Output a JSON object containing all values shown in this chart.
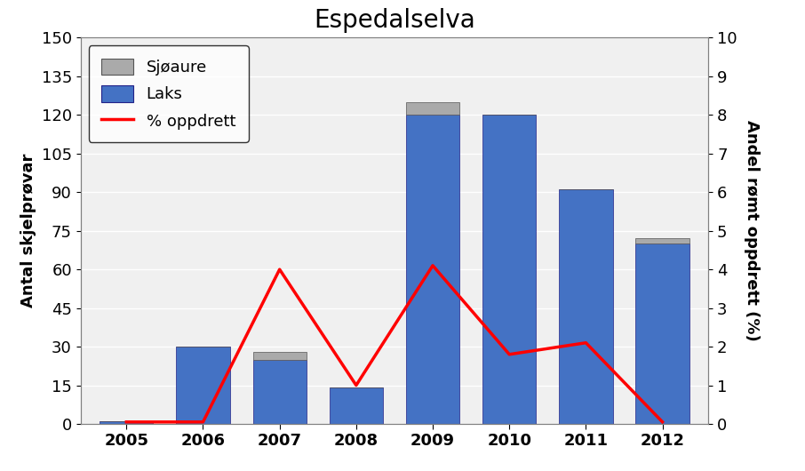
{
  "years": [
    2005,
    2006,
    2007,
    2008,
    2009,
    2010,
    2011,
    2012
  ],
  "laks": [
    1,
    30,
    25,
    14,
    120,
    120,
    91,
    70
  ],
  "sjoaure": [
    0,
    0,
    3,
    0,
    5,
    0,
    0,
    2
  ],
  "pct_oppdrett": [
    0.05,
    0.05,
    4.0,
    1.0,
    4.1,
    1.8,
    2.1,
    0.05
  ],
  "bar_color_laks": "#4472C4",
  "bar_color_sjoaure": "#AAAAAA",
  "line_color": "#FF0000",
  "title": "Espedalselva",
  "ylabel_left": "Antal skjelprøvar",
  "ylabel_right": "Andel rømt oppdrett (%)",
  "ylim_left": [
    0,
    150
  ],
  "ylim_right": [
    0,
    10
  ],
  "yticks_left": [
    0,
    15,
    30,
    45,
    60,
    75,
    90,
    105,
    120,
    135,
    150
  ],
  "yticks_right": [
    0,
    1,
    2,
    3,
    4,
    5,
    6,
    7,
    8,
    9,
    10
  ],
  "legend_labels": [
    "Sjøaure",
    "Laks",
    "% oppdrett"
  ],
  "title_fontsize": 20,
  "label_fontsize": 13,
  "tick_fontsize": 13,
  "bg_color": "#F0F0F0",
  "fig_color": "#FFFFFF"
}
